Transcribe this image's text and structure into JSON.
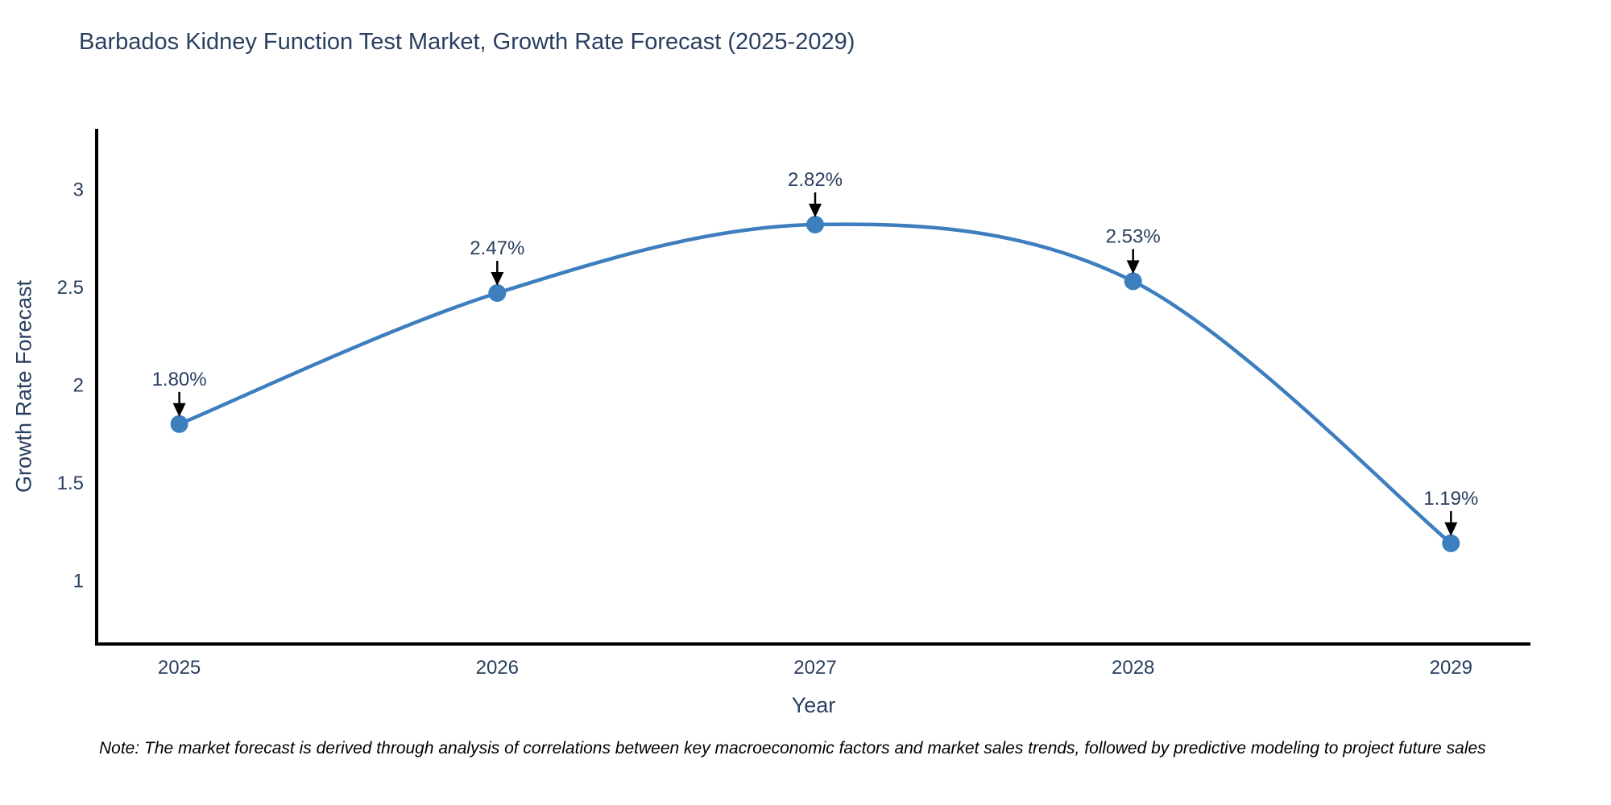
{
  "page": {
    "note": "Note: The market forecast is derived through analysis of correlations between key macroeconomic factors and market sales trends, followed by predictive modeling to project future sales"
  },
  "colors": {
    "line": "#3d7ebf",
    "marker": "#3d7ebf",
    "text": "#2a3f5f",
    "axis": "#000000",
    "annotation_arrow": "#000000",
    "background": "#ffffff"
  },
  "chart_data": {
    "type": "line",
    "title": "Barbados Kidney Function Test Market, Growth Rate Forecast (2025-2029)",
    "xlabel": "Year",
    "ylabel": "Growth Rate Forecast",
    "x": [
      2025,
      2026,
      2027,
      2028,
      2029
    ],
    "y": [
      1.8,
      2.47,
      2.82,
      2.53,
      1.19
    ],
    "point_labels": [
      "1.80%",
      "2.47%",
      "2.82%",
      "2.53%",
      "1.19%"
    ],
    "xticks": [
      2025,
      2026,
      2027,
      2028,
      2029
    ],
    "xtick_labels": [
      "2025",
      "2026",
      "2027",
      "2028",
      "2029"
    ],
    "yticks": [
      1,
      1.5,
      2,
      2.5,
      3
    ],
    "ytick_labels": [
      "1",
      "1.5",
      "2",
      "2.5",
      "3"
    ],
    "xlim": [
      2024.74,
      2029.25
    ],
    "ylim": [
      0.675,
      3.31
    ],
    "grid": false,
    "legend_position": "none",
    "line_shape": "spline",
    "marker_size": 11
  }
}
